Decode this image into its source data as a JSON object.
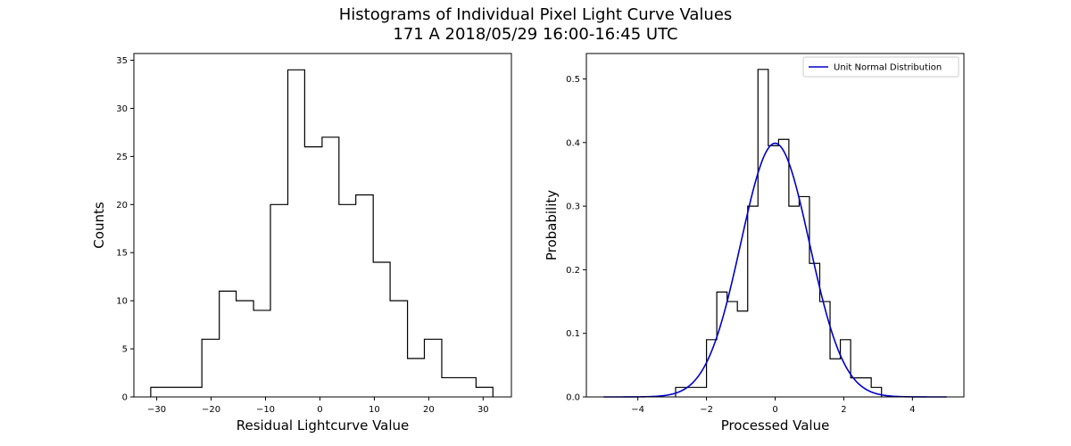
{
  "figure": {
    "title_line1": "Histograms of Individual Pixel Light Curve Values",
    "title_line2": "171 A 2018/05/29 16:00-16:45 UTC"
  },
  "chart_data": [
    {
      "type": "histogram",
      "title": "",
      "xlabel": "Residual Lightcurve Value",
      "ylabel": "Counts",
      "xlim": [
        -34.2,
        35.2
      ],
      "ylim": [
        0,
        35.7
      ],
      "xticks": [
        -30,
        -20,
        -10,
        0,
        10,
        20,
        30
      ],
      "xtick_labels": [
        "−30",
        "−20",
        "−10",
        "0",
        "10",
        "20",
        "30"
      ],
      "yticks": [
        0,
        5,
        10,
        15,
        20,
        25,
        30,
        35
      ],
      "ytick_labels": [
        "0",
        "5",
        "10",
        "15",
        "20",
        "25",
        "30",
        "35"
      ],
      "bin_edges": [
        -31.1,
        -28.0,
        -24.8,
        -21.7,
        -18.5,
        -15.4,
        -12.2,
        -9.1,
        -5.9,
        -2.8,
        0.4,
        3.5,
        6.6,
        9.8,
        12.9,
        16.1,
        19.2,
        22.4,
        25.5,
        28.7,
        31.8
      ],
      "counts": [
        1,
        1,
        1,
        6,
        11,
        10,
        9,
        20,
        34,
        26,
        27,
        20,
        21,
        14,
        10,
        4,
        6,
        2,
        2,
        1
      ],
      "color": "#000000",
      "grid": false
    },
    {
      "type": "histogram",
      "title": "",
      "xlabel": "Processed Value",
      "ylabel": "Probability",
      "xlim": [
        -5.5,
        5.5
      ],
      "ylim": [
        0,
        0.54
      ],
      "xticks": [
        -4,
        -2,
        0,
        2,
        4
      ],
      "xtick_labels": [
        "−4",
        "−2",
        "0",
        "2",
        "4"
      ],
      "yticks": [
        0.0,
        0.1,
        0.2,
        0.3,
        0.4,
        0.5
      ],
      "ytick_labels": [
        "0.0",
        "0.1",
        "0.2",
        "0.3",
        "0.4",
        "0.5"
      ],
      "bin_edges": [
        -2.9,
        -2.6,
        -2.3,
        -2.0,
        -1.7,
        -1.4,
        -1.1,
        -0.8,
        -0.5,
        -0.2,
        0.1,
        0.4,
        0.7,
        1.0,
        1.3,
        1.6,
        1.9,
        2.2,
        2.5,
        2.8,
        3.1
      ],
      "counts": [
        0.015,
        0.015,
        0.015,
        0.09,
        0.165,
        0.15,
        0.135,
        0.3,
        0.515,
        0.395,
        0.405,
        0.3,
        0.315,
        0.21,
        0.15,
        0.06,
        0.09,
        0.03,
        0.03,
        0.015
      ],
      "color": "#000000",
      "grid": false,
      "overlay": {
        "name": "Unit Normal Distribution",
        "type": "line",
        "function": "standard normal pdf",
        "x_range": [
          -5,
          5
        ],
        "color": "#0000cc"
      },
      "legend": {
        "position": "top-right",
        "entries": [
          "Unit Normal Distribution"
        ]
      }
    }
  ]
}
